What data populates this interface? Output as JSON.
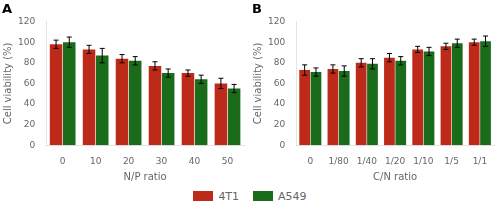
{
  "chart_data": [
    {
      "type": "bar",
      "title": "A",
      "categories": [
        "0",
        "10",
        "20",
        "30",
        "40",
        "50"
      ],
      "series": [
        {
          "name": "4T1",
          "color": "#BE2A1A",
          "values": [
            98,
            93,
            84,
            77,
            70,
            60
          ],
          "errors": [
            4,
            4,
            4,
            4,
            3,
            5
          ]
        },
        {
          "name": "A549",
          "color": "#1A6B1A",
          "values": [
            100,
            87,
            82,
            70,
            64,
            55
          ],
          "errors": [
            5,
            7,
            4,
            4,
            4,
            4
          ]
        }
      ],
      "xlabel": "N/P ratio",
      "ylabel": "Cell viability (%)",
      "ylim": [
        0,
        120
      ],
      "yticks": [
        0,
        20,
        40,
        60,
        80,
        100,
        120
      ],
      "grid": false,
      "legend": "bottom"
    },
    {
      "type": "bar",
      "title": "B",
      "categories": [
        "0",
        "1/80",
        "1/40",
        "1/20",
        "1/10",
        "1/5",
        "1/1"
      ],
      "series": [
        {
          "name": "4T1",
          "color": "#BE2A1A",
          "values": [
            73,
            74,
            80,
            85,
            93,
            96,
            100
          ],
          "errors": [
            5,
            4,
            4,
            4,
            3,
            3,
            3
          ]
        },
        {
          "name": "A549",
          "color": "#1A6B1A",
          "values": [
            71,
            72,
            79,
            82,
            91,
            99,
            101
          ],
          "errors": [
            4,
            5,
            5,
            4,
            4,
            4,
            5
          ]
        }
      ],
      "xlabel": "C/N ratio",
      "ylabel": "Cell viability (%)",
      "ylim": [
        0,
        120
      ],
      "yticks": [
        0,
        20,
        40,
        60,
        80,
        100,
        120
      ],
      "grid": false,
      "legend": "bottom"
    }
  ]
}
